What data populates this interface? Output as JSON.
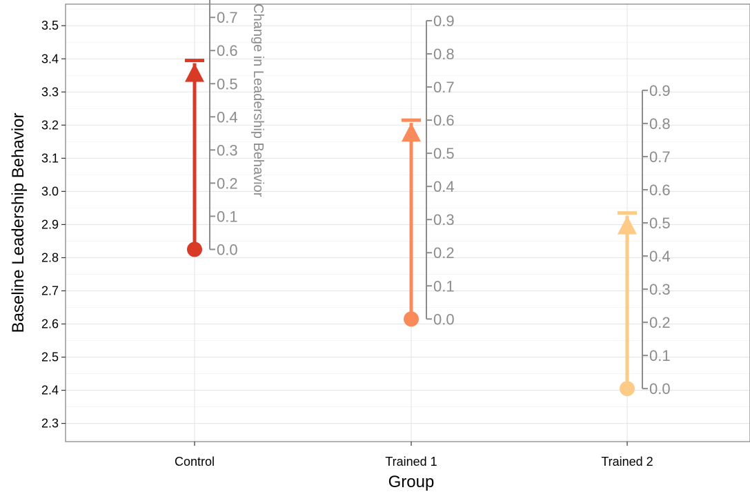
{
  "chart_data": {
    "type": "arrow-range",
    "xlabel": "Group",
    "ylabel": "Baseline Leadership Behavior",
    "ylim": [
      2.245,
      3.565
    ],
    "yticks": [
      "2.3",
      "2.4",
      "2.5",
      "2.6",
      "2.7",
      "2.8",
      "2.9",
      "3.0",
      "3.1",
      "3.2",
      "3.3",
      "3.4",
      "3.5"
    ],
    "grid": true,
    "categories": [
      "Control",
      "Trained 1",
      "Trained 2"
    ],
    "groups": [
      {
        "name": "Control",
        "baseline": 2.825,
        "end": 3.395,
        "change": 0.57,
        "color": "#d93a25"
      },
      {
        "name": "Trained 1",
        "baseline": 2.615,
        "end": 3.215,
        "change": 0.6,
        "color": "#fb8a5a"
      },
      {
        "name": "Trained 2",
        "baseline": 2.405,
        "end": 2.935,
        "change": 0.53,
        "color": "#fdcb86"
      }
    ],
    "secondary_axis": {
      "label": "Change in Leadership Behavior",
      "ticks": [
        "0.0",
        "0.1",
        "0.2",
        "0.3",
        "0.4",
        "0.5",
        "0.6",
        "0.7",
        "0.8",
        "0.9"
      ]
    }
  }
}
